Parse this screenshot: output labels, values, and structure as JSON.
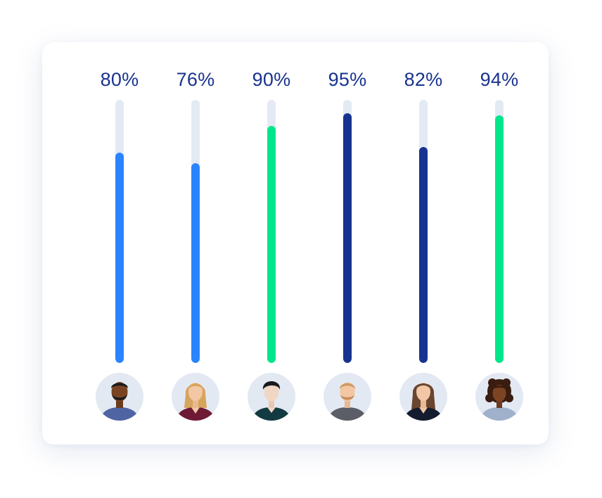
{
  "chart_data": {
    "type": "bar",
    "orientation": "vertical",
    "ylim": [
      0,
      100
    ],
    "bars": [
      {
        "label": "80%",
        "value": 80,
        "color": "#2a84ff",
        "avatar": "man-dark-skin-beard-avatar-icon"
      },
      {
        "label": "76%",
        "value": 76,
        "color": "#2a84ff",
        "avatar": "woman-blonde-hair-avatar-icon"
      },
      {
        "label": "90%",
        "value": 90,
        "color": "#00e68a",
        "avatar": "man-dark-hair-avatar-icon"
      },
      {
        "label": "95%",
        "value": 95,
        "color": "#17338f",
        "avatar": "man-ginger-beard-avatar-icon"
      },
      {
        "label": "82%",
        "value": 82,
        "color": "#17338f",
        "avatar": "woman-brown-hair-avatar-icon"
      },
      {
        "label": "94%",
        "value": 94,
        "color": "#00e68a",
        "avatar": "woman-curly-hair-avatar-icon"
      }
    ]
  },
  "colors": {
    "track": "#e4eaf3",
    "label": "#18338f",
    "avatar_bg": "#e3e9f2"
  }
}
